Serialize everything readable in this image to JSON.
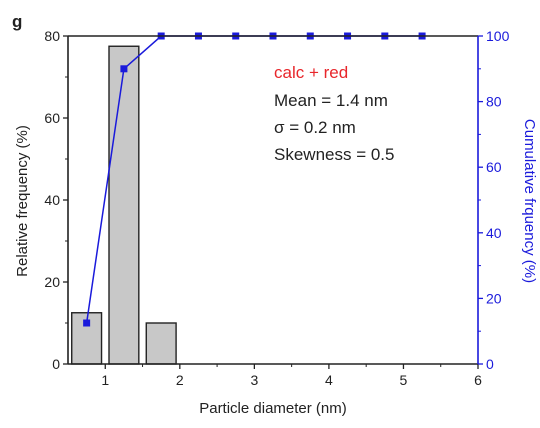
{
  "chart_data": {
    "type": "bar",
    "panel_label": "g",
    "xlabel": "Particle diameter (nm)",
    "ylabel": "Relative frequency (%)",
    "y2label": "Cumulative frquency (%)",
    "xlim": [
      0.5,
      6
    ],
    "ylim": [
      0,
      80
    ],
    "y2lim": [
      0,
      100
    ],
    "xticks": [
      1,
      2,
      3,
      4,
      5,
      6
    ],
    "yticks": [
      0,
      20,
      40,
      60,
      80
    ],
    "y2ticks": [
      0,
      20,
      40,
      60,
      80,
      100
    ],
    "grid": false,
    "bars": {
      "x_start": [
        0.55,
        1.05,
        1.55
      ],
      "x_end": [
        0.95,
        1.45,
        1.95
      ],
      "values": [
        12.5,
        77.5,
        10
      ]
    },
    "cumulative": {
      "x": [
        0.75,
        1.25,
        1.75,
        2.25,
        2.75,
        3.25,
        3.75,
        4.25,
        4.75,
        5.25
      ],
      "values": [
        12.5,
        90,
        100,
        100,
        100,
        100,
        100,
        100,
        100,
        100
      ]
    },
    "annotation": {
      "title": "calc + red",
      "lines": [
        "Mean = 1.4 nm",
        "σ = 0.2 nm",
        "Skewness = 0.5"
      ]
    },
    "colors": {
      "bar_fill": "#c8c8c8",
      "bar_stroke": "#222222",
      "cumulative": "#1a1adb",
      "annotation_title": "#e8262b",
      "axis": "#222222"
    }
  }
}
